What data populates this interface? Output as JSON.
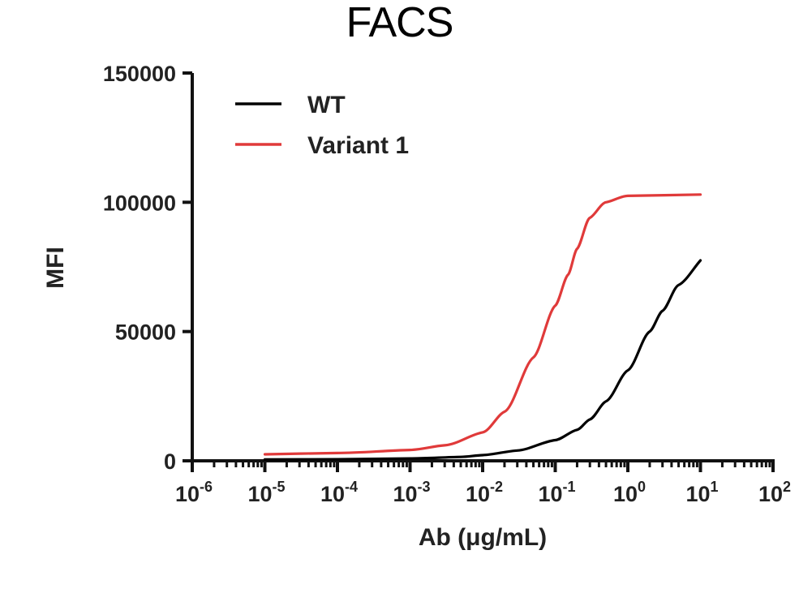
{
  "chart_data": {
    "type": "line",
    "title": "FACS",
    "xlabel": "Ab (μg/mL)",
    "ylabel": "MFI",
    "x_scale": "log",
    "xlim": [
      1e-06,
      100
    ],
    "ylim": [
      0,
      150000
    ],
    "x_ticks": [
      1e-06,
      1e-05,
      0.0001,
      0.001,
      0.01,
      0.1,
      1,
      10,
      100
    ],
    "x_tick_bases": [
      "10",
      "10",
      "10",
      "10",
      "10",
      "10",
      "10",
      "10",
      "10"
    ],
    "x_tick_exponents": [
      "-6",
      "-5",
      "-4",
      "-3",
      "-2",
      "-1",
      "0",
      "1",
      "2"
    ],
    "y_ticks": [
      0,
      50000,
      100000,
      150000
    ],
    "y_tick_labels": [
      "0",
      "50000",
      "100000",
      "150000"
    ],
    "legend_position": "top-left",
    "grid": false,
    "series": [
      {
        "name": "WT",
        "color": "#000000",
        "x": [
          1e-05,
          0.0001,
          0.001,
          0.005,
          0.01,
          0.03,
          0.1,
          0.2,
          0.3,
          0.5,
          1,
          2,
          3,
          5,
          10
        ],
        "y": [
          500,
          600,
          900,
          1500,
          2200,
          4000,
          8000,
          12000,
          16000,
          23000,
          35000,
          50000,
          58000,
          68000,
          77500
        ]
      },
      {
        "name": "Variant 1",
        "color": "#e03a3a",
        "x": [
          1e-05,
          0.0001,
          0.001,
          0.003,
          0.01,
          0.02,
          0.05,
          0.1,
          0.15,
          0.2,
          0.3,
          0.5,
          1,
          10
        ],
        "y": [
          2500,
          3000,
          4200,
          6000,
          11000,
          19000,
          40000,
          60000,
          72000,
          82000,
          94000,
          100000,
          102500,
          103000
        ]
      }
    ]
  }
}
